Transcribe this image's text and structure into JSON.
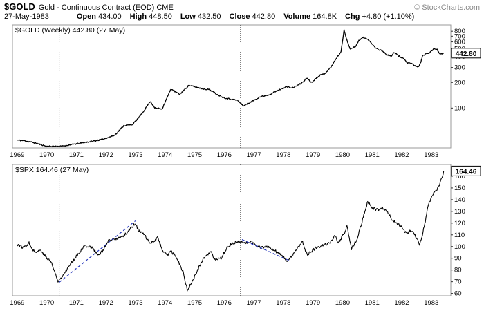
{
  "header": {
    "symbol": "$GOLD",
    "description": "Gold - Continuous Contract (EOD) CME",
    "copyright": "© StockCharts.com",
    "date": "27-May-1983",
    "quote": [
      {
        "label": "Open",
        "value": "434.00"
      },
      {
        "label": "High",
        "value": "448.50"
      },
      {
        "label": "Low",
        "value": "432.50"
      },
      {
        "label": "Close",
        "value": "442.80"
      },
      {
        "label": "Volume",
        "value": "164.8K"
      },
      {
        "label": "Chg",
        "value": "+4.80 (+1.10%)"
      }
    ]
  },
  "chart_data": [
    {
      "type": "line",
      "name": "$GOLD weekly close",
      "title": "$GOLD (Weekly) 442.80 (27 May)",
      "last_price_label": "442.80",
      "last_value": 442.8,
      "scale": "log",
      "xlim": [
        1968.84,
        1983.66
      ],
      "ylim": [
        34,
        950
      ],
      "x_ticks": [
        1969,
        1970,
        1971,
        1972,
        1973,
        1974,
        1975,
        1976,
        1977,
        1978,
        1979,
        1980,
        1981,
        1982,
        1983
      ],
      "y_ticks": [
        800,
        700,
        600,
        500,
        400,
        300,
        200,
        100
      ],
      "vlines": [
        1970.42,
        1976.55
      ],
      "grid": "vertical-dotted-only",
      "legend": "none",
      "line_color": "#000000",
      "seed": 11,
      "noise": 0.016,
      "anchors": [
        [
          1969.0,
          42
        ],
        [
          1969.3,
          41
        ],
        [
          1969.6,
          39
        ],
        [
          1970.0,
          35.5
        ],
        [
          1970.5,
          35.5
        ],
        [
          1971.0,
          38
        ],
        [
          1971.6,
          41
        ],
        [
          1971.9,
          43
        ],
        [
          1972.3,
          48
        ],
        [
          1972.6,
          62
        ],
        [
          1972.9,
          64
        ],
        [
          1973.2,
          84
        ],
        [
          1973.5,
          120
        ],
        [
          1973.65,
          100
        ],
        [
          1973.9,
          98
        ],
        [
          1974.2,
          168
        ],
        [
          1974.35,
          155
        ],
        [
          1974.5,
          145
        ],
        [
          1974.8,
          185
        ],
        [
          1975.0,
          178
        ],
        [
          1975.3,
          168
        ],
        [
          1975.5,
          165
        ],
        [
          1975.8,
          142
        ],
        [
          1976.0,
          132
        ],
        [
          1976.2,
          128
        ],
        [
          1976.45,
          123
        ],
        [
          1976.65,
          106
        ],
        [
          1976.9,
          118
        ],
        [
          1977.2,
          135
        ],
        [
          1977.5,
          143
        ],
        [
          1977.8,
          160
        ],
        [
          1978.1,
          178
        ],
        [
          1978.3,
          172
        ],
        [
          1978.6,
          195
        ],
        [
          1978.8,
          225
        ],
        [
          1978.95,
          200
        ],
        [
          1979.2,
          240
        ],
        [
          1979.4,
          255
        ],
        [
          1979.6,
          300
        ],
        [
          1979.8,
          390
        ],
        [
          1979.95,
          460
        ],
        [
          1980.05,
          830
        ],
        [
          1980.15,
          630
        ],
        [
          1980.25,
          495
        ],
        [
          1980.45,
          535
        ],
        [
          1980.55,
          620
        ],
        [
          1980.7,
          680
        ],
        [
          1980.85,
          640
        ],
        [
          1981.0,
          570
        ],
        [
          1981.15,
          500
        ],
        [
          1981.35,
          470
        ],
        [
          1981.5,
          420
        ],
        [
          1981.65,
          410
        ],
        [
          1981.75,
          450
        ],
        [
          1981.9,
          410
        ],
        [
          1982.05,
          385
        ],
        [
          1982.2,
          340
        ],
        [
          1982.35,
          330
        ],
        [
          1982.45,
          315
        ],
        [
          1982.55,
          302
        ],
        [
          1982.65,
          345
        ],
        [
          1982.7,
          410
        ],
        [
          1982.85,
          440
        ],
        [
          1982.95,
          450
        ],
        [
          1983.1,
          500
        ],
        [
          1983.2,
          490
        ],
        [
          1983.3,
          425
        ],
        [
          1983.42,
          442.8
        ]
      ]
    },
    {
      "type": "line",
      "name": "$SPX weekly close",
      "title": "$SPX 164.46 (27 May)",
      "last_price_label": "164.46",
      "last_value": 164.46,
      "scale": "linear",
      "xlim": [
        1968.84,
        1983.66
      ],
      "ylim": [
        58,
        170
      ],
      "x_ticks": [
        1969,
        1970,
        1971,
        1972,
        1973,
        1974,
        1975,
        1976,
        1977,
        1978,
        1979,
        1980,
        1981,
        1982,
        1983
      ],
      "y_ticks": [
        160,
        150,
        140,
        130,
        120,
        110,
        100,
        90,
        80,
        70,
        60
      ],
      "vlines": [
        1970.42,
        1976.55
      ],
      "grid": "vertical-dotted-only",
      "legend": "none",
      "line_color": "#000000",
      "trendline_color": "#2233bb",
      "seed": 77,
      "noise": 1.2,
      "trendlines": [
        [
          [
            1970.42,
            69.5
          ],
          [
            1973.0,
            122
          ]
        ],
        [
          [
            1976.6,
            106
          ],
          [
            1978.2,
            88
          ]
        ]
      ],
      "anchors": [
        [
          1969.0,
          102
        ],
        [
          1969.2,
          99
        ],
        [
          1969.4,
          103
        ],
        [
          1969.6,
          95
        ],
        [
          1969.8,
          97
        ],
        [
          1970.0,
          90
        ],
        [
          1970.15,
          87
        ],
        [
          1970.38,
          70
        ],
        [
          1970.55,
          76
        ],
        [
          1970.75,
          83
        ],
        [
          1971.0,
          92
        ],
        [
          1971.3,
          101
        ],
        [
          1971.55,
          99
        ],
        [
          1971.75,
          92
        ],
        [
          1971.9,
          97
        ],
        [
          1972.1,
          105
        ],
        [
          1972.4,
          107
        ],
        [
          1972.6,
          109
        ],
        [
          1972.85,
          116
        ],
        [
          1973.0,
          120
        ],
        [
          1973.1,
          114
        ],
        [
          1973.3,
          110
        ],
        [
          1973.5,
          102
        ],
        [
          1973.75,
          108
        ],
        [
          1973.9,
          97
        ],
        [
          1974.1,
          93
        ],
        [
          1974.2,
          96
        ],
        [
          1974.4,
          90
        ],
        [
          1974.6,
          79
        ],
        [
          1974.75,
          63
        ],
        [
          1974.9,
          69
        ],
        [
          1975.1,
          80
        ],
        [
          1975.3,
          90
        ],
        [
          1975.55,
          95
        ],
        [
          1975.7,
          88
        ],
        [
          1975.9,
          90
        ],
        [
          1976.1,
          100
        ],
        [
          1976.3,
          103
        ],
        [
          1976.55,
          104
        ],
        [
          1976.75,
          103
        ],
        [
          1976.9,
          105
        ],
        [
          1977.1,
          100
        ],
        [
          1977.3,
          99
        ],
        [
          1977.5,
          100
        ],
        [
          1977.7,
          97
        ],
        [
          1977.9,
          93
        ],
        [
          1978.15,
          87
        ],
        [
          1978.4,
          96
        ],
        [
          1978.65,
          104
        ],
        [
          1978.8,
          93
        ],
        [
          1978.95,
          96
        ],
        [
          1979.1,
          99
        ],
        [
          1979.3,
          101
        ],
        [
          1979.55,
          103
        ],
        [
          1979.75,
          109
        ],
        [
          1979.85,
          103
        ],
        [
          1980.05,
          111
        ],
        [
          1980.15,
          117
        ],
        [
          1980.3,
          98
        ],
        [
          1980.5,
          107
        ],
        [
          1980.7,
          125
        ],
        [
          1980.85,
          138
        ],
        [
          1981.0,
          133
        ],
        [
          1981.2,
          131
        ],
        [
          1981.35,
          133
        ],
        [
          1981.5,
          130
        ],
        [
          1981.7,
          122
        ],
        [
          1981.85,
          120
        ],
        [
          1982.0,
          117
        ],
        [
          1982.15,
          111
        ],
        [
          1982.3,
          114
        ],
        [
          1982.45,
          110
        ],
        [
          1982.6,
          102
        ],
        [
          1982.7,
          110
        ],
        [
          1982.8,
          122
        ],
        [
          1982.9,
          136
        ],
        [
          1983.0,
          142
        ],
        [
          1983.1,
          146
        ],
        [
          1983.25,
          151
        ],
        [
          1983.35,
          158
        ],
        [
          1983.42,
          164.46
        ]
      ]
    }
  ]
}
